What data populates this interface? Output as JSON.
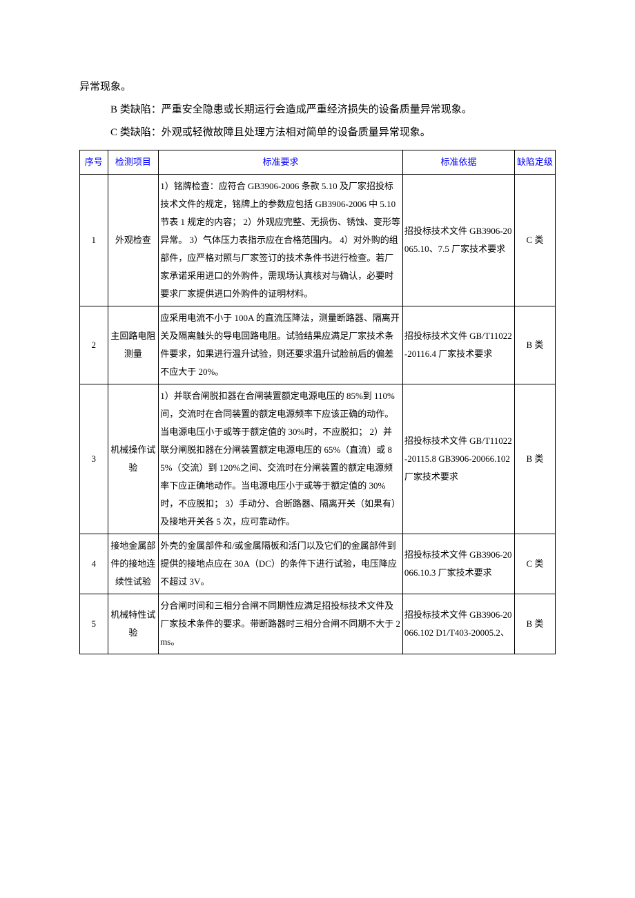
{
  "intro": {
    "line1": "异常现象。",
    "line2": "B 类缺陷：严重安全隐患或长期运行会造成严重经济损失的设备质量异常现象。",
    "line3": "C 类缺陷：外观或轻微故障且处理方法相对简单的设备质量异常现象。"
  },
  "table": {
    "headers": {
      "seq": "序号",
      "item": "检测项目",
      "req": "标准要求",
      "basis": "标准依据",
      "grade": "缺陷定级"
    },
    "rows": [
      {
        "seq": "1",
        "item": "外观检查",
        "req": "1）铭牌检查：应符合 GB3906-2006 条款 5.10 及厂家招投标技术文件的规定，铭牌上的参数应包括 GB3906-2006 中 5.10 节表 1 规定的内容；\n2）外观应完整、无损伤、锈蚀、变形等异常。\n3）气体压力表指示应在合格范围内。\n4）对外购的组部件，应严格对照与厂家签订的技术条件书进行检查。若厂家承诺采用进口的外购件，需现场认真核对与确认，必要时要求厂家提供进口外购件的证明材料。",
        "basis": "招投标技术文件\nGB3906-20065.10、7.5\n厂家技术要求",
        "grade": "C 类"
      },
      {
        "seq": "2",
        "item": "主回路电阻测量",
        "req": "应采用电流不小于 100A 的直流压降法，测量断路器、隔离开关及隔离触头的导电回路电阻。试验结果应满足厂家技术条件要求，如果进行温升试验，则还要求温升试脸前后的偏差不应大于 20%。",
        "basis": "招投标技术文件\nGB/T11022-20116.4\n厂家技术要求",
        "grade": "B 类"
      },
      {
        "seq": "3",
        "item": "机械操作试验",
        "req": "1）并联合闸脱扣器在合闸装置额定电源电压的 85%到 110%间，交流时在合同装置的额定电源频率下应该正确的动作。当电源电压小于或等于额定值的 30%时，不应脱扣；\n2）并联分闸脱扣器在分闸装置额定电源电压的 65%（直流）或 85%（交流）到 120%之间、交流时在分闸装置的额定电源频率下应正确地动作。当电源电压小于或等于额定值的 30%时，不应脱扣；\n3）手动分、合断路器、隔离开关（如果有）及接地开关各 5 次，应可靠动作。",
        "basis": "招投标技术文件\nGB/T11022-20115.8\nGB3906-20066.102\n厂家技术要求",
        "grade": "B 类"
      },
      {
        "seq": "4",
        "item": "接地金属部件的接地连续性试验",
        "req": "外壳的金属部件和/或金属隔板和活门以及它们的金属部件到提供的接地点应在 30A（DC）的条件下进行试验，电压降应不超过 3V。",
        "basis": "招投标技术文件\nGB3906-20066.10.3\n厂家技术要求",
        "grade": "C 类"
      },
      {
        "seq": "5",
        "item": "机械特性试验",
        "req": "分合闸时间和三相分合闸不同期性应满足招投标技术文件及厂家技术条件的要求。带断路器时三相分合闸不同期不大于 2ms。",
        "basis": "招投标技术文件\nGB3906-20066.102\nD1/T403-20005.2、",
        "grade": "B 类"
      }
    ]
  },
  "colors": {
    "header_text": "#0000ff",
    "body_text": "#000000",
    "border": "#000000",
    "background": "#ffffff"
  }
}
